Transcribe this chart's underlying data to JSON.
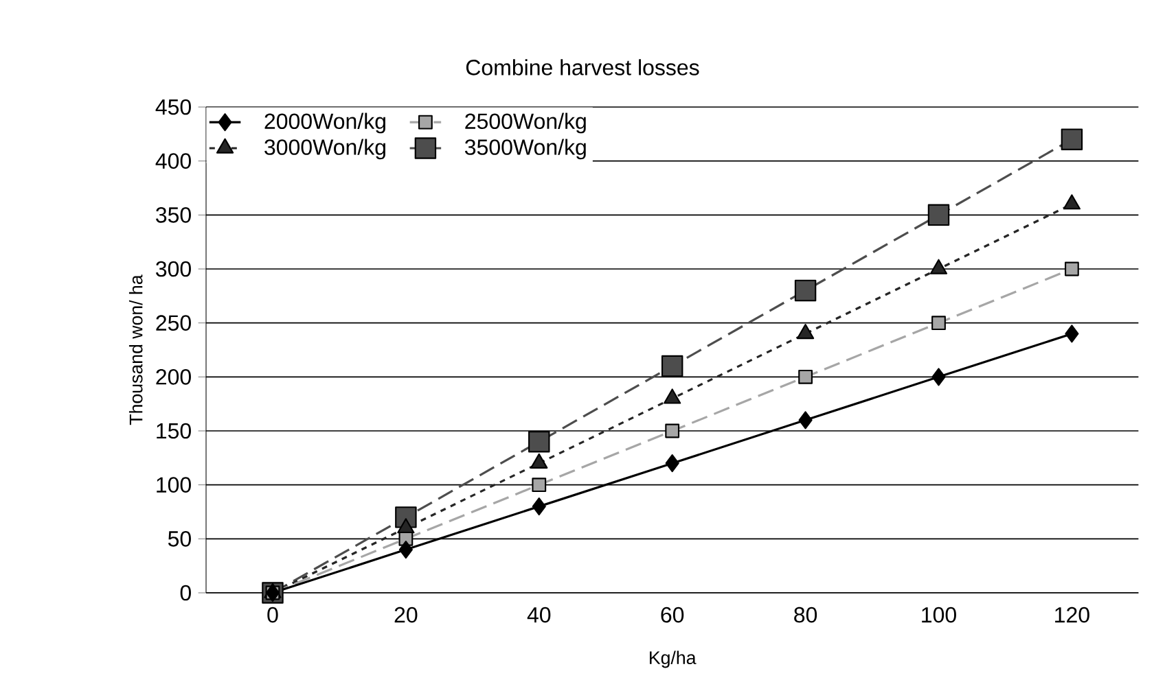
{
  "chart_data": {
    "type": "line",
    "title": "Combine harvest losses",
    "xlabel": "Kg/ha",
    "ylabel": "Thousand won/ ha",
    "categories": [
      "0",
      "20",
      "40",
      "60",
      "80",
      "100",
      "120"
    ],
    "series": [
      {
        "name": "2000Won/kg",
        "color": "#000000",
        "marker": "diamond",
        "line_style": "solid",
        "values": [
          0,
          40,
          80,
          120,
          160,
          200,
          240
        ]
      },
      {
        "name": "2500Won/kg",
        "color": "#a6a6a6",
        "marker": "square",
        "line_style": "dashed",
        "values": [
          0,
          50,
          100,
          150,
          200,
          250,
          300
        ]
      },
      {
        "name": "3000Won/kg",
        "color": "#262626",
        "marker": "triangle",
        "line_style": "dotted",
        "values": [
          0,
          60,
          120,
          180,
          240,
          300,
          360
        ]
      },
      {
        "name": "3500Won/kg",
        "color": "#4d4d4d",
        "marker": "square",
        "line_style": "dashed",
        "values": [
          0,
          70,
          140,
          210,
          280,
          350,
          420
        ]
      }
    ],
    "ylim": [
      0,
      450
    ],
    "yticks": [
      0,
      50,
      100,
      150,
      200,
      250,
      300,
      350,
      400,
      450
    ],
    "grid": "y",
    "legend": "top left"
  }
}
